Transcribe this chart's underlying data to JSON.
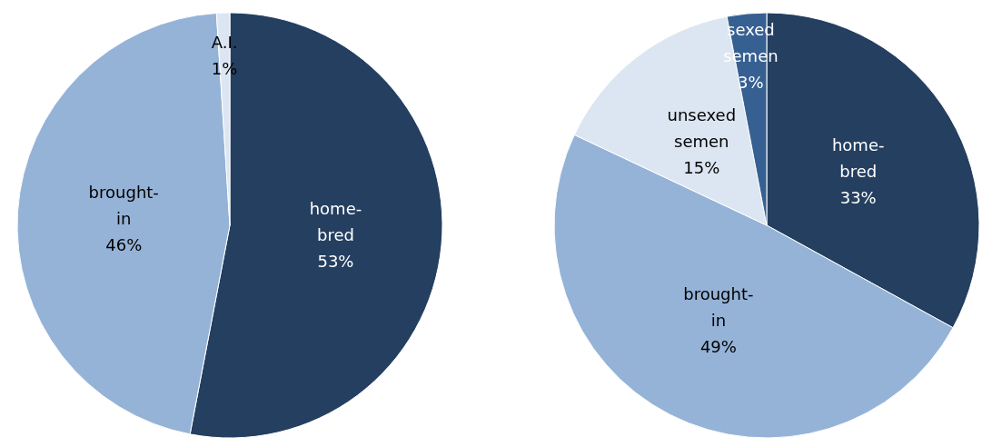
{
  "chart_data": [
    {
      "type": "pie",
      "categories": [
        "home-bred",
        "brought-in",
        "A.I."
      ],
      "values": [
        53,
        46,
        1
      ],
      "colors": [
        "#243f60",
        "#95b3d7",
        "#dce6f2"
      ],
      "value_labels": [
        "53%",
        "46%",
        "1%"
      ]
    },
    {
      "type": "pie",
      "categories": [
        "home-bred",
        "brought-in",
        "unsexed semen",
        "sexed semen"
      ],
      "values": [
        33,
        49,
        15,
        3
      ],
      "colors": [
        "#243f60",
        "#95b3d7",
        "#dce6f2",
        "#366092"
      ],
      "value_labels": [
        "33%",
        "49%",
        "15%",
        "3%"
      ]
    }
  ]
}
